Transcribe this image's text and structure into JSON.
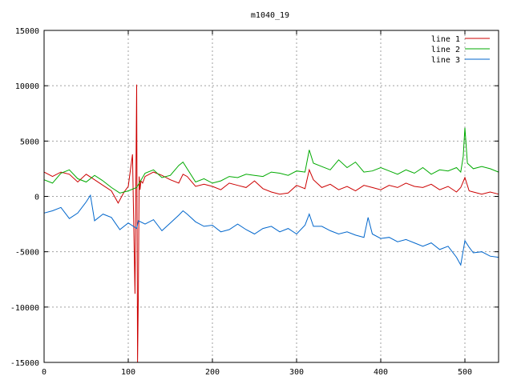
{
  "chart_data": {
    "type": "line",
    "title": "m1040_19",
    "xlim": [
      0,
      540
    ],
    "ylim": [
      -15000,
      15000
    ],
    "xticks": [
      0,
      100,
      200,
      300,
      400,
      500
    ],
    "yticks": [
      -15000,
      -10000,
      -5000,
      0,
      5000,
      10000,
      15000
    ],
    "xtick_labels": [
      "0",
      "100",
      "200",
      "300",
      "400",
      "500"
    ],
    "ytick_labels": [
      "-15000",
      "-10000",
      "-5000",
      "0",
      "5000",
      "10000",
      "15000"
    ],
    "grid": true,
    "legend": "top-right",
    "series": [
      {
        "name": "line 1",
        "color": "#cc0000",
        "x": [
          0,
          10,
          20,
          30,
          40,
          50,
          60,
          70,
          80,
          88,
          95,
          100,
          105,
          108,
          110,
          111,
          112,
          113,
          114,
          115,
          117,
          120,
          130,
          140,
          150,
          160,
          165,
          170,
          180,
          190,
          200,
          210,
          220,
          230,
          240,
          250,
          260,
          270,
          280,
          290,
          300,
          310,
          315,
          320,
          330,
          340,
          350,
          360,
          370,
          380,
          390,
          400,
          410,
          420,
          430,
          440,
          450,
          460,
          470,
          480,
          490,
          495,
          500,
          505,
          510,
          520,
          530,
          540
        ],
        "y": [
          2200,
          1800,
          2200,
          2000,
          1300,
          2000,
          1500,
          1000,
          500,
          -600,
          400,
          900,
          3800,
          -8800,
          10100,
          -15000,
          -8800,
          1800,
          600,
          1400,
          1200,
          1800,
          2200,
          1900,
          1500,
          1200,
          2000,
          1800,
          900,
          1100,
          900,
          600,
          1200,
          1000,
          800,
          1400,
          700,
          400,
          200,
          300,
          1000,
          700,
          2400,
          1500,
          800,
          1100,
          600,
          900,
          500,
          1000,
          800,
          600,
          1000,
          800,
          1200,
          900,
          800,
          1100,
          600,
          900,
          400,
          800,
          1700,
          500,
          400,
          200,
          400,
          200
        ]
      },
      {
        "name": "line 2",
        "color": "#00aa00",
        "x": [
          0,
          10,
          20,
          30,
          40,
          50,
          60,
          70,
          80,
          90,
          100,
          110,
          120,
          130,
          140,
          150,
          160,
          165,
          170,
          180,
          190,
          200,
          210,
          220,
          230,
          240,
          250,
          260,
          270,
          280,
          290,
          300,
          310,
          315,
          320,
          330,
          340,
          350,
          360,
          370,
          380,
          390,
          400,
          410,
          420,
          430,
          440,
          450,
          460,
          470,
          480,
          490,
          495,
          498,
          500,
          503,
          510,
          520,
          530,
          540
        ],
        "y": [
          1500,
          1200,
          2100,
          2400,
          1600,
          1300,
          1900,
          1400,
          800,
          300,
          500,
          800,
          2100,
          2400,
          1700,
          1900,
          2800,
          3100,
          2500,
          1300,
          1600,
          1200,
          1400,
          1800,
          1700,
          2000,
          1900,
          1800,
          2200,
          2100,
          1900,
          2300,
          2200,
          4200,
          3000,
          2700,
          2400,
          3300,
          2600,
          3100,
          2200,
          2300,
          2600,
          2300,
          2000,
          2400,
          2100,
          2600,
          2000,
          2400,
          2300,
          2600,
          2200,
          3600,
          6200,
          3000,
          2500,
          2700,
          2500,
          2200
        ]
      },
      {
        "name": "line 3",
        "color": "#0066cc",
        "x": [
          0,
          10,
          20,
          30,
          40,
          50,
          55,
          60,
          70,
          80,
          90,
          100,
          110,
          112,
          120,
          130,
          140,
          150,
          160,
          165,
          170,
          180,
          190,
          200,
          210,
          220,
          230,
          240,
          250,
          260,
          270,
          280,
          290,
          300,
          310,
          315,
          320,
          330,
          340,
          350,
          360,
          370,
          380,
          385,
          390,
          400,
          410,
          420,
          430,
          440,
          450,
          460,
          470,
          480,
          490,
          495,
          500,
          505,
          510,
          520,
          530,
          540
        ],
        "y": [
          -1500,
          -1300,
          -1000,
          -2000,
          -1500,
          -500,
          100,
          -2200,
          -1600,
          -1900,
          -3000,
          -2400,
          -2900,
          -2200,
          -2500,
          -2100,
          -3100,
          -2400,
          -1700,
          -1300,
          -1600,
          -2300,
          -2700,
          -2600,
          -3200,
          -3000,
          -2500,
          -3000,
          -3400,
          -2900,
          -2700,
          -3200,
          -2900,
          -3400,
          -2600,
          -1600,
          -2700,
          -2700,
          -3100,
          -3400,
          -3200,
          -3500,
          -3700,
          -1900,
          -3400,
          -3800,
          -3700,
          -4100,
          -3900,
          -4200,
          -4500,
          -4200,
          -4800,
          -4500,
          -5500,
          -6200,
          -4000,
          -4600,
          -5100,
          -5000,
          -5400,
          -5500
        ]
      }
    ]
  }
}
